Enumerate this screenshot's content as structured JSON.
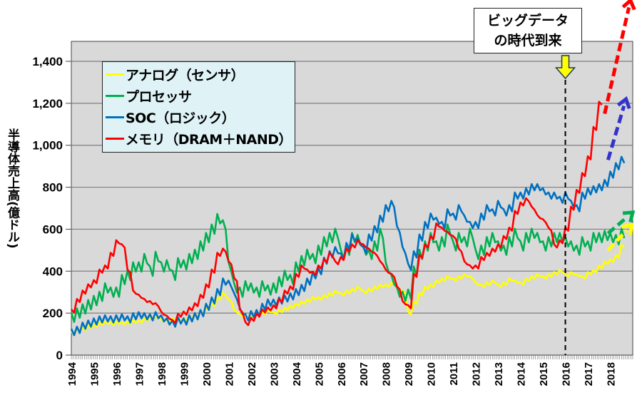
{
  "chart_data": {
    "type": "line",
    "title": "",
    "ylabel": "半導体売上高(億ドル)",
    "xlabel": "",
    "ylim": [
      0,
      1500
    ],
    "yticks": [
      0,
      200,
      400,
      600,
      800,
      1000,
      1200,
      1400
    ],
    "ytick_labels": [
      "0",
      "200",
      "400",
      "600",
      "800",
      "1,000",
      "1,200",
      "1,400"
    ],
    "xlim": [
      1994,
      2019
    ],
    "xtick_labels": [
      "1994",
      "1995",
      "1996",
      "1997",
      "1998",
      "1999",
      "2000",
      "2001",
      "2002",
      "2003",
      "2004",
      "2005",
      "2006",
      "2007",
      "2008",
      "2009",
      "2010",
      "2011",
      "2012",
      "2013",
      "2014",
      "2015",
      "2016",
      "2017",
      "2018"
    ],
    "grid": true,
    "legend_position": "top-left",
    "x_step_years": 0.25,
    "x_start": 1994,
    "series": [
      {
        "name": "アナログ（センサ）",
        "color": "#ffff00",
        "values": [
          105,
          115,
          125,
          135,
          140,
          150,
          155,
          150,
          155,
          150,
          155,
          160,
          160,
          170,
          175,
          180,
          165,
          160,
          170,
          165,
          170,
          180,
          190,
          200,
          220,
          240,
          270,
          290,
          260,
          210,
          190,
          180,
          185,
          190,
          200,
          210,
          200,
          210,
          220,
          230,
          240,
          250,
          260,
          270,
          270,
          280,
          290,
          300,
          290,
          300,
          310,
          320,
          300,
          310,
          320,
          330,
          330,
          340,
          320,
          300,
          200,
          250,
          290,
          320,
          330,
          350,
          360,
          370,
          360,
          370,
          380,
          370,
          340,
          330,
          340,
          350,
          330,
          340,
          360,
          350,
          340,
          360,
          370,
          380,
          370,
          380,
          390,
          400,
          380,
          390,
          380,
          370,
          390,
          400,
          420,
          440,
          450,
          470,
          520
        ]
      },
      {
        "name": "プロセッサ",
        "color": "#00b050",
        "values": [
          180,
          200,
          220,
          240,
          260,
          280,
          320,
          300,
          300,
          360,
          380,
          420,
          420,
          460,
          400,
          470,
          420,
          430,
          380,
          440,
          430,
          460,
          480,
          520,
          560,
          600,
          650,
          620,
          420,
          320,
          300,
          330,
          320,
          300,
          330,
          310,
          320,
          350,
          380,
          360,
          420,
          450,
          480,
          460,
          500,
          540,
          560,
          580,
          480,
          500,
          560,
          550,
          500,
          480,
          520,
          580,
          420,
          360,
          300,
          280,
          290,
          400,
          480,
          520,
          560,
          520,
          540,
          600,
          520,
          560,
          540,
          580,
          480,
          500,
          540,
          560,
          520,
          500,
          540,
          580,
          520,
          560,
          580,
          560,
          520,
          540,
          560,
          560,
          540,
          520,
          500,
          540,
          520,
          560,
          560,
          570,
          560,
          550,
          580
        ]
      },
      {
        "name": "SOC（ロジック）",
        "color": "#0070c0",
        "values": [
          110,
          120,
          140,
          150,
          160,
          170,
          175,
          170,
          175,
          180,
          170,
          185,
          190,
          185,
          180,
          190,
          175,
          160,
          150,
          165,
          160,
          175,
          185,
          200,
          230,
          260,
          300,
          350,
          340,
          280,
          210,
          180,
          195,
          200,
          230,
          250,
          250,
          260,
          270,
          280,
          300,
          320,
          350,
          380,
          400,
          450,
          480,
          500,
          470,
          520,
          560,
          540,
          500,
          560,
          600,
          650,
          700,
          720,
          600,
          500,
          420,
          480,
          560,
          620,
          660,
          640,
          620,
          680,
          660,
          700,
          650,
          620,
          620,
          660,
          700,
          680,
          720,
          680,
          700,
          760,
          760,
          780,
          800,
          800,
          780,
          760,
          760,
          740,
          760,
          720,
          700,
          760,
          780,
          790,
          800,
          820,
          860,
          900,
          930
        ]
      },
      {
        "name": "メモリ（DRAM＋NAND）",
        "color": "#ff0000",
        "values": [
          210,
          260,
          300,
          330,
          350,
          400,
          420,
          480,
          540,
          520,
          400,
          300,
          280,
          260,
          250,
          240,
          200,
          180,
          160,
          190,
          200,
          220,
          240,
          280,
          330,
          400,
          480,
          500,
          440,
          360,
          210,
          150,
          170,
          190,
          210,
          220,
          230,
          260,
          300,
          320,
          380,
          420,
          400,
          390,
          420,
          450,
          480,
          440,
          460,
          500,
          520,
          540,
          520,
          500,
          480,
          440,
          400,
          380,
          320,
          250,
          230,
          380,
          470,
          520,
          560,
          620,
          600,
          580,
          560,
          500,
          440,
          420,
          420,
          460,
          480,
          500,
          520,
          560,
          600,
          680,
          720,
          740,
          700,
          660,
          640,
          600,
          520,
          540,
          600,
          700,
          780,
          860,
          940,
          1080,
          1200
        ]
      }
    ],
    "projections": [
      {
        "series": "メモリ（DRAM＋NAND）",
        "color": "#ff0000",
        "from": [
          2017.75,
          1150
        ],
        "to": [
          2018.9,
          1690
        ]
      },
      {
        "series": "SOC（ロジック）",
        "color": "#3333cc",
        "from": [
          2017.9,
          930
        ],
        "to": [
          2018.7,
          1220
        ]
      },
      {
        "series": "プロセッサ",
        "color": "#00b050",
        "from": [
          2017.9,
          580
        ],
        "to": [
          2019.0,
          680
        ]
      },
      {
        "series": "アナログ（センサ）",
        "color": "#ffff00",
        "from": [
          2017.9,
          500
        ],
        "to": [
          2018.95,
          620
        ]
      }
    ],
    "annotations": [
      {
        "text_line1": "ビッグデータ",
        "text_line2": "の時代到来",
        "x": 2016.0
      }
    ]
  },
  "legend": {
    "items": [
      {
        "label": "アナログ（センサ）",
        "color": "#ffff00"
      },
      {
        "label": "プロセッサ",
        "color": "#00b050"
      },
      {
        "label": "SOC（ロジック）",
        "color": "#0070c0"
      },
      {
        "label": "メモリ（DRAM＋NAND）",
        "color": "#ff0000"
      }
    ]
  },
  "callout": {
    "line1": "ビッグデータ",
    "line2": "の時代到来"
  }
}
